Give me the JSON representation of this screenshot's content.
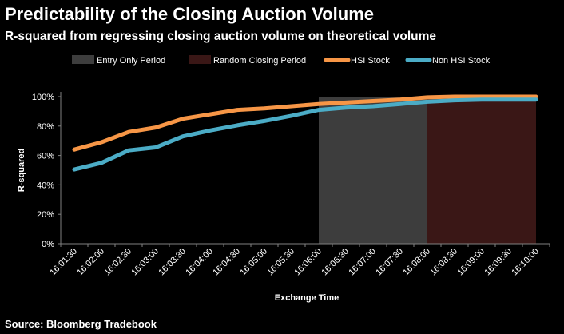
{
  "header": {
    "title": "Predictability of the Closing Auction Volume",
    "subtitle": "R-squared from regressing closing auction volume on theoretical volume"
  },
  "footer": {
    "source": "Source: Bloomberg Tradebook"
  },
  "colors": {
    "background": "#000000",
    "entry_only_period": "#3d3d3d",
    "random_closing_period": "#3a1716",
    "hsi_stock": "#f79646",
    "non_hsi_stock": "#4bacc6",
    "axis": "#808080",
    "text": "#ffffff"
  },
  "chart_data": {
    "type": "line",
    "title": "Predictability of the Closing Auction Volume",
    "subtitle": "R-squared from regressing closing auction volume on theoretical volume",
    "xlabel": "Exchange Time",
    "ylabel": "R-squared",
    "ylim": [
      0,
      100
    ],
    "yticks": [
      "0%",
      "20%",
      "40%",
      "60%",
      "80%",
      "100%"
    ],
    "ytick_values": [
      0,
      20,
      40,
      60,
      80,
      100
    ],
    "grid": false,
    "legend_position": "top",
    "x": [
      "16:01:30",
      "16:02:00",
      "16:02:30",
      "16:03:00",
      "16:03:30",
      "16:04:00",
      "16:04:30",
      "16:05:00",
      "16:05:30",
      "16:06:00",
      "16:06:30",
      "16:07:00",
      "16:07:30",
      "16:08:00",
      "16:08:30",
      "16:09:00",
      "16:09:30",
      "16:10:00"
    ],
    "periods": [
      {
        "name": "Entry Only Period",
        "from": "16:06:00",
        "to": "16:08:00"
      },
      {
        "name": "Random Closing Period",
        "from": "16:08:00",
        "to": "16:10:00"
      }
    ],
    "series": [
      {
        "name": "HSI Stock",
        "values": [
          64,
          69,
          76,
          79,
          85,
          88,
          91,
          92,
          93.5,
          95,
          96,
          97,
          98,
          99.5,
          100,
          100,
          100,
          100
        ]
      },
      {
        "name": "Non HSI Stock",
        "values": [
          50.5,
          55,
          63.5,
          65.5,
          73,
          77,
          80.5,
          83.5,
          87,
          91,
          92.5,
          93.5,
          95,
          96.5,
          97.5,
          98,
          98,
          98
        ]
      }
    ]
  }
}
